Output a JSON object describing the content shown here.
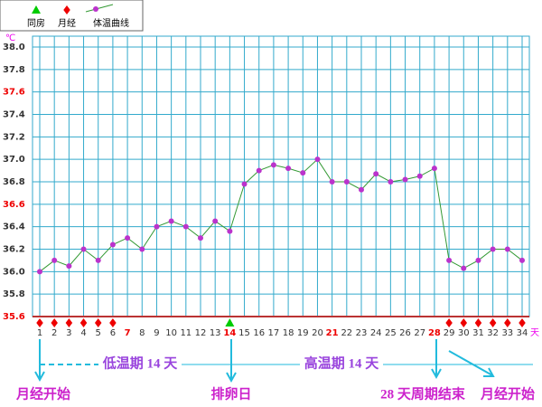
{
  "chart_data": {
    "type": "line",
    "y_unit": "℃",
    "x_unit": "天",
    "categories": [
      1,
      2,
      3,
      4,
      5,
      6,
      7,
      8,
      9,
      10,
      11,
      12,
      13,
      14,
      15,
      16,
      17,
      18,
      19,
      20,
      21,
      22,
      23,
      24,
      25,
      26,
      27,
      28,
      29,
      30,
      31,
      32,
      33,
      34
    ],
    "category_colors": [
      "#333",
      "#333",
      "#333",
      "#333",
      "#333",
      "#333",
      "#e00",
      "#333",
      "#333",
      "#333",
      "#333",
      "#333",
      "#333",
      "#e00",
      "#333",
      "#333",
      "#333",
      "#333",
      "#333",
      "#333",
      "#e00",
      "#333",
      "#333",
      "#333",
      "#333",
      "#333",
      "#333",
      "#e00",
      "#333",
      "#333",
      "#333",
      "#333",
      "#333",
      "#333"
    ],
    "series": [
      {
        "name": "体温曲线",
        "color": "#339933",
        "marker_color": "#bb33cc",
        "values": [
          36.0,
          36.1,
          36.05,
          36.2,
          36.1,
          36.24,
          36.3,
          36.2,
          36.4,
          36.45,
          36.4,
          36.3,
          36.45,
          36.36,
          36.78,
          36.9,
          36.95,
          36.92,
          36.88,
          37.0,
          36.8,
          36.8,
          36.73,
          36.87,
          36.8,
          36.82,
          36.85,
          36.92,
          36.1,
          36.03,
          36.1,
          36.2,
          36.2,
          36.1
        ]
      }
    ],
    "markers": [
      {
        "name": "同房",
        "color": "#00cc00",
        "shape": "triangle",
        "days": [
          14
        ]
      },
      {
        "name": "月经",
        "color": "#ee0000",
        "shape": "diamond",
        "days": [
          1,
          2,
          3,
          4,
          5,
          6,
          29,
          30,
          31,
          32,
          33,
          34
        ]
      }
    ],
    "ylim": [
      35.6,
      38.0
    ],
    "yticks": [
      {
        "value": 35.6,
        "label": "35.6",
        "color": "#e00"
      },
      {
        "value": 35.8,
        "label": "35.8",
        "color": "#333"
      },
      {
        "value": 36.0,
        "label": "36.0",
        "color": "#333"
      },
      {
        "value": 36.2,
        "label": "36.2",
        "color": "#333"
      },
      {
        "value": 36.4,
        "label": "36.4",
        "color": "#333"
      },
      {
        "value": 36.6,
        "label": "36.6",
        "color": "#e00"
      },
      {
        "value": 36.8,
        "label": "36.8",
        "color": "#333"
      },
      {
        "value": 37.0,
        "label": "37.0",
        "color": "#333"
      },
      {
        "value": 37.2,
        "label": "37.2",
        "color": "#333"
      },
      {
        "value": 37.4,
        "label": "37.4",
        "color": "#333"
      },
      {
        "value": 37.6,
        "label": "37.6",
        "color": "#e00"
      },
      {
        "value": 37.8,
        "label": "37.8",
        "color": "#333"
      },
      {
        "value": 38.0,
        "label": "38.0",
        "color": "#333"
      }
    ],
    "grid": true,
    "grid_color": "#33aacc",
    "annotations": [
      "低温期 14 天",
      "高温期 14 天",
      "月经开始",
      "排卵日",
      "28 天周期结束",
      "月经开始"
    ]
  }
}
